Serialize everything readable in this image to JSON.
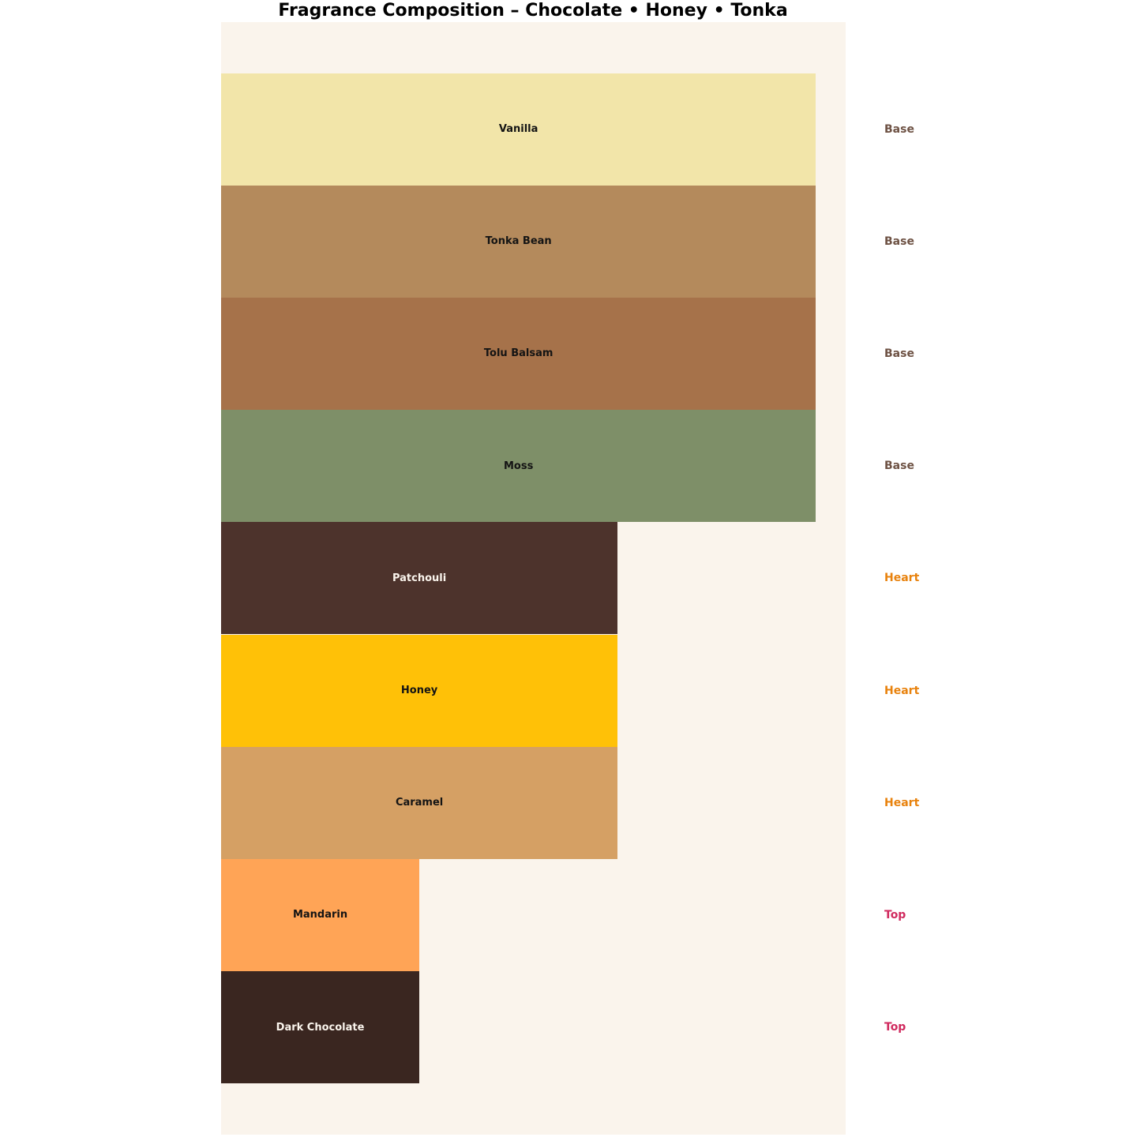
{
  "page_title": "Fragrance Composition – Chocolate • Honey • Tonka",
  "colors": {
    "page_bg": "#FFFFFF",
    "plot_bg": "#FAF4EC",
    "title_text": "#000000"
  },
  "chart_data": {
    "type": "bar",
    "orientation": "horizontal",
    "title": "Fragrance Composition – Chocolate • Honey • Tonka",
    "xlabel": "",
    "ylabel": "",
    "xlim": [
      0,
      31.5
    ],
    "grid": false,
    "legend": "none",
    "axes_visible": false,
    "categories": [
      "Vanilla",
      "Tonka Bean",
      "Tolu Balsam",
      "Moss",
      "Patchouli",
      "Honey",
      "Caramel",
      "Mandarin",
      "Dark Chocolate"
    ],
    "values": [
      30,
      30,
      30,
      30,
      20,
      20,
      20,
      10,
      10
    ],
    "bars": [
      {
        "label": "Vanilla",
        "value": 30,
        "group": "Base",
        "color": "#F2E5A9",
        "label_color": "#141414"
      },
      {
        "label": "Tonka Bean",
        "value": 30,
        "group": "Base",
        "color": "#B48A5C",
        "label_color": "#141414"
      },
      {
        "label": "Tolu Balsam",
        "value": 30,
        "group": "Base",
        "color": "#A6724A",
        "label_color": "#141414"
      },
      {
        "label": "Moss",
        "value": 30,
        "group": "Base",
        "color": "#7E8F68",
        "label_color": "#141414"
      },
      {
        "label": "Patchouli",
        "value": 20,
        "group": "Heart",
        "color": "#4D332C",
        "label_color": "#FAF4EC"
      },
      {
        "label": "Honey",
        "value": 20,
        "group": "Heart",
        "color": "#FFC107",
        "label_color": "#141414"
      },
      {
        "label": "Caramel",
        "value": 20,
        "group": "Heart",
        "color": "#D5A064",
        "label_color": "#141414"
      },
      {
        "label": "Mandarin",
        "value": 10,
        "group": "Top",
        "color": "#FFA456",
        "label_color": "#141414"
      },
      {
        "label": "Dark Chocolate",
        "value": 10,
        "group": "Top",
        "color": "#3A2620",
        "label_color": "#FAF4EC"
      }
    ],
    "group_label_colors": {
      "Base": "#6E5244",
      "Heart": "#E8820D",
      "Top": "#D02A5E"
    }
  }
}
